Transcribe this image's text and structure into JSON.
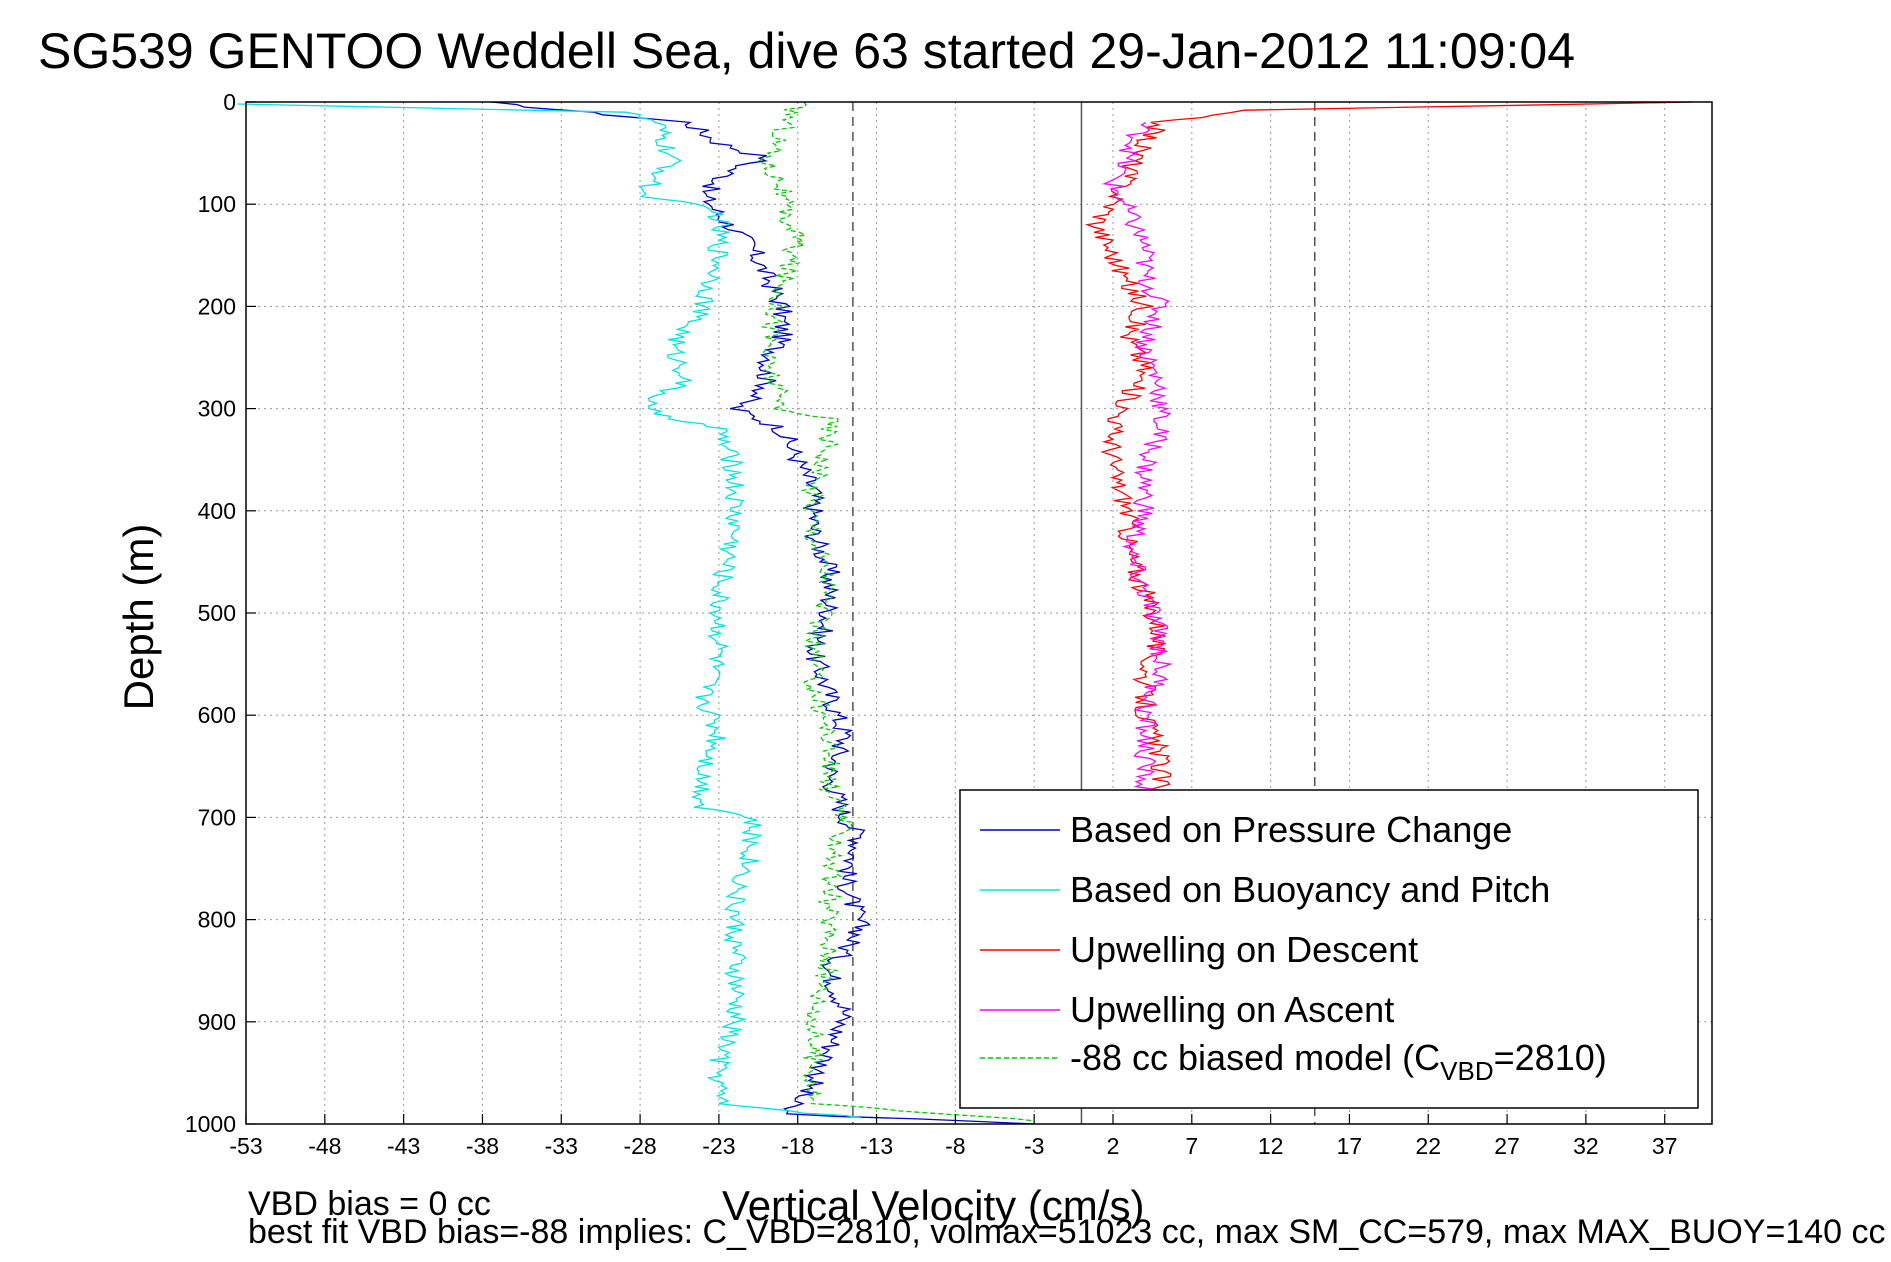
{
  "chart_data": {
    "type": "line",
    "title": "SG539 GENTOO Weddell Sea, dive 63 started 29-Jan-2012 11:09:04",
    "xlabel": "Vertical Velocity (cm/s)",
    "ylabel": "Depth (m)",
    "xlim": [
      -53,
      40
    ],
    "ylim": [
      0,
      1000
    ],
    "y_reversed": true,
    "xticks": [
      "-53",
      "-48",
      "-43",
      "-38",
      "-33",
      "-28",
      "-23",
      "-18",
      "-13",
      "-8",
      "-3",
      "2",
      "7",
      "12",
      "17",
      "22",
      "27",
      "32",
      "37"
    ],
    "yticks": [
      "0",
      "100",
      "200",
      "300",
      "400",
      "500",
      "600",
      "700",
      "800",
      "900",
      "1000"
    ],
    "grid": true,
    "legend_position": "bottom-right",
    "vertical_lines": [
      {
        "x": -14.5,
        "style": "dashed",
        "color": "#555555"
      },
      {
        "x": 0.0,
        "style": "solid",
        "color": "#555555"
      },
      {
        "x": 14.8,
        "style": "dashed",
        "color": "#555555"
      }
    ],
    "series": [
      {
        "name": "Based on Pressure Change",
        "color": "#0000cc",
        "style": "solid",
        "points": [
          [
            -38,
            0
          ],
          [
            -25,
            20
          ],
          [
            -23,
            40
          ],
          [
            -20,
            55
          ],
          [
            -22,
            65
          ],
          [
            -24,
            90
          ],
          [
            -23,
            110
          ],
          [
            -21,
            140
          ],
          [
            -20,
            170
          ],
          [
            -19,
            200
          ],
          [
            -19,
            230
          ],
          [
            -20,
            260
          ],
          [
            -20,
            280
          ],
          [
            -22,
            300
          ],
          [
            -19,
            320
          ],
          [
            -18,
            350
          ],
          [
            -17,
            380
          ],
          [
            -17,
            420
          ],
          [
            -16,
            460
          ],
          [
            -16,
            500
          ],
          [
            -17,
            540
          ],
          [
            -16,
            580
          ],
          [
            -15,
            620
          ],
          [
            -16,
            660
          ],
          [
            -15,
            700
          ],
          [
            -14,
            720
          ],
          [
            -15,
            760
          ],
          [
            -14,
            810
          ],
          [
            -16,
            850
          ],
          [
            -15,
            890
          ],
          [
            -16,
            930
          ],
          [
            -17,
            960
          ],
          [
            -19,
            990
          ],
          [
            -3,
            1000
          ]
        ]
      },
      {
        "name": "Based on Buoyancy and Pitch",
        "color": "#00e5e5",
        "style": "solid",
        "points": [
          [
            -53,
            2
          ],
          [
            -29,
            10
          ],
          [
            -27,
            20
          ],
          [
            -26,
            60
          ],
          [
            -28,
            90
          ],
          [
            -25,
            100
          ],
          [
            -23,
            110
          ],
          [
            -23,
            130
          ],
          [
            -23,
            160
          ],
          [
            -24,
            200
          ],
          [
            -26,
            240
          ],
          [
            -25,
            270
          ],
          [
            -28,
            300
          ],
          [
            -23,
            320
          ],
          [
            -22,
            360
          ],
          [
            -22,
            420
          ],
          [
            -23,
            480
          ],
          [
            -23,
            540
          ],
          [
            -24,
            580
          ],
          [
            -23,
            620
          ],
          [
            -24,
            660
          ],
          [
            -24,
            690
          ],
          [
            -21,
            700
          ],
          [
            -21,
            740
          ],
          [
            -22,
            780
          ],
          [
            -22,
            820
          ],
          [
            -22,
            860
          ],
          [
            -22,
            900
          ],
          [
            -23,
            940
          ],
          [
            -23,
            980
          ],
          [
            -14,
            994
          ]
        ]
      },
      {
        "name": "Upwelling on Descent",
        "color": "#ff0000",
        "style": "solid",
        "points": [
          [
            39,
            0
          ],
          [
            10,
            8
          ],
          [
            5,
            20
          ],
          [
            4,
            40
          ],
          [
            3,
            70
          ],
          [
            2,
            100
          ],
          [
            1,
            120
          ],
          [
            2,
            150
          ],
          [
            3,
            180
          ],
          [
            4,
            200
          ],
          [
            3,
            230
          ],
          [
            4,
            260
          ],
          [
            3,
            290
          ],
          [
            2,
            320
          ],
          [
            2,
            360
          ],
          [
            3,
            400
          ],
          [
            3,
            440
          ],
          [
            4,
            480
          ],
          [
            5,
            520
          ],
          [
            4,
            560
          ],
          [
            4,
            600
          ],
          [
            5,
            640
          ],
          [
            5,
            680
          ]
        ]
      },
      {
        "name": "Upwelling on Ascent",
        "color": "#ff00ff",
        "style": "solid",
        "points": [
          [
            4,
            20
          ],
          [
            3,
            50
          ],
          [
            2,
            80
          ],
          [
            3,
            110
          ],
          [
            4,
            140
          ],
          [
            4,
            170
          ],
          [
            5,
            200
          ],
          [
            4,
            240
          ],
          [
            5,
            280
          ],
          [
            5,
            320
          ],
          [
            4,
            360
          ],
          [
            4,
            400
          ],
          [
            3,
            440
          ],
          [
            4,
            480
          ],
          [
            5,
            520
          ],
          [
            5,
            560
          ],
          [
            4,
            600
          ],
          [
            4,
            640
          ],
          [
            4,
            680
          ]
        ]
      },
      {
        "name": "-88 cc biased model (C",
        "name_sub": "VBD",
        "name_tail": "=2810)",
        "color": "#00cc00",
        "style": "dashed",
        "points": [
          [
            -18,
            0
          ],
          [
            -20,
            60
          ],
          [
            -19,
            80
          ],
          [
            -19,
            110
          ],
          [
            -18,
            130
          ],
          [
            -19,
            180
          ],
          [
            -20,
            250
          ],
          [
            -19,
            300
          ],
          [
            -16,
            310
          ],
          [
            -16,
            340
          ],
          [
            -17,
            370
          ],
          [
            -17,
            420
          ],
          [
            -16,
            470
          ],
          [
            -17,
            530
          ],
          [
            -17,
            570
          ],
          [
            -16,
            620
          ],
          [
            -16,
            680
          ],
          [
            -15,
            700
          ],
          [
            -16,
            760
          ],
          [
            -16,
            840
          ],
          [
            -17,
            900
          ],
          [
            -17,
            950
          ],
          [
            -17,
            980
          ],
          [
            -3,
            997
          ]
        ]
      }
    ],
    "notes": [
      "VBD bias = 0 cc",
      "best fit VBD bias=-88 implies: C_VBD=2810, volmax=51023 cc, max SM_CC=579, max MAX_BUOY=140 cc"
    ]
  }
}
